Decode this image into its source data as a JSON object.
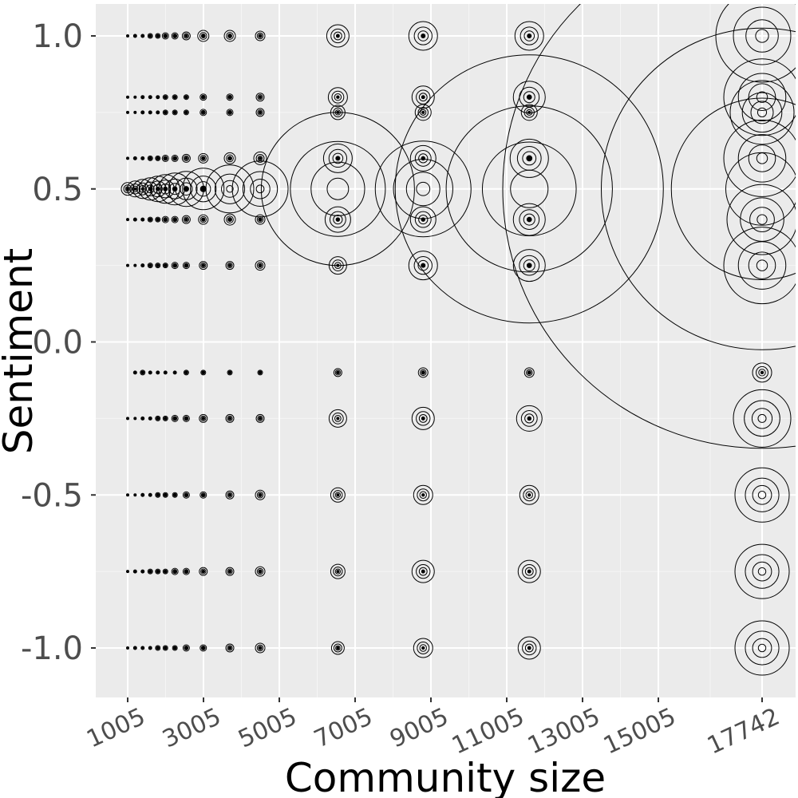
{
  "chart_data": {
    "type": "scatter",
    "title": "",
    "xlabel": "Community size",
    "ylabel": "Sentiment",
    "xlim": [
      1,
      17742
    ],
    "ylim": [
      -1.15,
      1.1
    ],
    "x_ticks": [
      1005,
      3005,
      5005,
      7005,
      9005,
      11005,
      13005,
      15005,
      17742
    ],
    "x_tick_labels": [
      "1005",
      "3005",
      "5005",
      "7005",
      "9005",
      "11005",
      "13005",
      "15005",
      "17742"
    ],
    "y_ticks": [
      -1.0,
      -0.5,
      0.0,
      0.5,
      1.0
    ],
    "y_tick_labels": [
      "-1.0",
      "-0.5",
      "0.0",
      "0.5",
      "1.0"
    ],
    "grid": true,
    "background": "#ebebeb",
    "grid_major_color": "#ffffff",
    "point_color": "#000000",
    "notes": "Symbols are open circles whose size encodes the count of observations at each (community size, sentiment) pair; many overlap.",
    "columns": [
      {
        "x": 1005,
        "r": [
          [
            1.0,
            1
          ],
          [
            0.8,
            1
          ],
          [
            0.75,
            1
          ],
          [
            0.6,
            1
          ],
          [
            0.5,
            8
          ],
          [
            0.4,
            1
          ],
          [
            0.25,
            1
          ],
          [
            -0.25,
            1
          ],
          [
            -0.5,
            1
          ],
          [
            -0.75,
            1
          ],
          [
            -1.0,
            1
          ]
        ]
      },
      {
        "x": 1201,
        "r": [
          [
            1.0,
            2
          ],
          [
            0.8,
            1
          ],
          [
            0.75,
            1
          ],
          [
            0.6,
            2
          ],
          [
            0.5,
            10
          ],
          [
            0.4,
            2
          ],
          [
            0.25,
            1
          ],
          [
            -0.1,
            2
          ],
          [
            -0.25,
            1
          ],
          [
            -0.5,
            1
          ],
          [
            -0.75,
            2
          ],
          [
            -1.0,
            2
          ]
        ]
      },
      {
        "x": 1400,
        "r": [
          [
            1.0,
            2
          ],
          [
            0.8,
            2
          ],
          [
            0.75,
            2
          ],
          [
            0.6,
            2
          ],
          [
            0.5,
            12
          ],
          [
            0.4,
            2
          ],
          [
            0.25,
            2
          ],
          [
            -0.1,
            3
          ],
          [
            -0.25,
            2
          ],
          [
            -0.5,
            2
          ],
          [
            -0.75,
            2
          ],
          [
            -1.0,
            2
          ]
        ]
      },
      {
        "x": 1600,
        "r": [
          [
            1.0,
            3
          ],
          [
            0.8,
            2
          ],
          [
            0.75,
            2
          ],
          [
            0.6,
            3
          ],
          [
            0.5,
            14
          ],
          [
            0.4,
            3
          ],
          [
            0.25,
            3
          ],
          [
            -0.1,
            2
          ],
          [
            -0.25,
            2
          ],
          [
            -0.5,
            2
          ],
          [
            -0.75,
            3
          ],
          [
            -1.0,
            2
          ]
        ]
      },
      {
        "x": 1800,
        "r": [
          [
            1.0,
            3
          ],
          [
            0.8,
            2
          ],
          [
            0.75,
            2
          ],
          [
            0.6,
            3
          ],
          [
            0.5,
            16
          ],
          [
            0.4,
            3
          ],
          [
            0.25,
            3
          ],
          [
            -0.1,
            2
          ],
          [
            -0.25,
            3
          ],
          [
            -0.5,
            3
          ],
          [
            -0.75,
            3
          ],
          [
            -1.0,
            3
          ]
        ]
      },
      {
        "x": 2000,
        "r": [
          [
            1.0,
            4
          ],
          [
            0.8,
            3
          ],
          [
            0.75,
            3
          ],
          [
            0.6,
            4
          ],
          [
            0.5,
            18
          ],
          [
            0.4,
            4
          ],
          [
            0.25,
            3
          ],
          [
            -0.1,
            2
          ],
          [
            -0.25,
            3
          ],
          [
            -0.5,
            3
          ],
          [
            -0.75,
            3
          ],
          [
            -1.0,
            3
          ]
        ]
      },
      {
        "x": 2250,
        "r": [
          [
            1.0,
            4
          ],
          [
            0.8,
            3
          ],
          [
            0.75,
            3
          ],
          [
            0.6,
            4
          ],
          [
            0.5,
            20
          ],
          [
            0.4,
            4
          ],
          [
            0.25,
            4
          ],
          [
            -0.1,
            2
          ],
          [
            -0.25,
            4
          ],
          [
            -0.5,
            3
          ],
          [
            -0.75,
            4
          ],
          [
            -1.0,
            3
          ]
        ]
      },
      {
        "x": 2550,
        "r": [
          [
            1.0,
            5
          ],
          [
            0.8,
            3
          ],
          [
            0.75,
            3
          ],
          [
            0.6,
            5
          ],
          [
            0.5,
            22
          ],
          [
            0.4,
            5
          ],
          [
            0.25,
            4
          ],
          [
            -0.1,
            3
          ],
          [
            -0.25,
            4
          ],
          [
            -0.5,
            4
          ],
          [
            -0.75,
            4
          ],
          [
            -1.0,
            4
          ]
        ]
      },
      {
        "x": 3000,
        "r": [
          [
            1.0,
            7
          ],
          [
            0.8,
            4
          ],
          [
            0.75,
            4
          ],
          [
            0.6,
            6
          ],
          [
            0.5,
            26
          ],
          [
            0.4,
            6
          ],
          [
            0.25,
            5
          ],
          [
            -0.1,
            3
          ],
          [
            -0.25,
            5
          ],
          [
            -0.5,
            4
          ],
          [
            -0.75,
            5
          ],
          [
            -1.0,
            4
          ]
        ]
      },
      {
        "x": 3700,
        "r": [
          [
            1.0,
            7
          ],
          [
            0.8,
            4
          ],
          [
            0.75,
            4
          ],
          [
            0.6,
            7
          ],
          [
            0.5,
            30
          ],
          [
            0.4,
            7
          ],
          [
            0.25,
            5
          ],
          [
            -0.1,
            3
          ],
          [
            -0.25,
            5
          ],
          [
            -0.5,
            5
          ],
          [
            -0.75,
            5
          ],
          [
            -1.0,
            5
          ]
        ]
      },
      {
        "x": 4500,
        "r": [
          [
            1.0,
            6
          ],
          [
            0.8,
            5
          ],
          [
            0.75,
            5
          ],
          [
            0.6,
            8
          ],
          [
            0.5,
            35
          ],
          [
            0.4,
            6
          ],
          [
            0.25,
            6
          ],
          [
            -0.1,
            3
          ],
          [
            -0.25,
            5
          ],
          [
            -0.5,
            6
          ],
          [
            -0.75,
            6
          ],
          [
            -1.0,
            6
          ]
        ]
      },
      {
        "x": 6550,
        "r": [
          [
            1.0,
            14
          ],
          [
            0.8,
            12
          ],
          [
            0.75,
            9
          ],
          [
            0.6,
            18
          ],
          [
            0.5,
            96
          ],
          [
            0.4,
            16
          ],
          [
            0.25,
            11
          ],
          [
            -0.1,
            5
          ],
          [
            -0.25,
            11
          ],
          [
            -0.5,
            9
          ],
          [
            -0.75,
            9
          ],
          [
            -1.0,
            8
          ]
        ]
      },
      {
        "x": 8800,
        "r": [
          [
            1.0,
            18
          ],
          [
            0.8,
            14
          ],
          [
            0.75,
            10
          ],
          [
            0.6,
            16
          ],
          [
            0.5,
            60
          ],
          [
            0.4,
            16
          ],
          [
            0.25,
            18
          ],
          [
            -0.1,
            6
          ],
          [
            -0.25,
            14
          ],
          [
            -0.5,
            12
          ],
          [
            -0.75,
            14
          ],
          [
            -1.0,
            12
          ]
        ]
      },
      {
        "x": 11600,
        "r": [
          [
            1.0,
            18
          ],
          [
            0.8,
            20
          ],
          [
            0.75,
            10
          ],
          [
            0.6,
            24
          ],
          [
            0.5,
            168
          ],
          [
            0.4,
            20
          ],
          [
            0.25,
            20
          ],
          [
            -0.1,
            6
          ],
          [
            -0.25,
            16
          ],
          [
            -0.5,
            12
          ],
          [
            -0.75,
            14
          ],
          [
            -1.0,
            14
          ]
        ]
      },
      {
        "x": 17742,
        "r": [
          [
            1.0,
            58
          ],
          [
            0.8,
            48
          ],
          [
            0.75,
            40
          ],
          [
            0.6,
            48
          ],
          [
            0.5,
            325
          ],
          [
            0.4,
            44
          ],
          [
            0.25,
            48
          ],
          [
            -0.1,
            12
          ],
          [
            -0.25,
            36
          ],
          [
            -0.5,
            34
          ],
          [
            -0.75,
            34
          ],
          [
            -1.0,
            34
          ]
        ]
      }
    ]
  }
}
